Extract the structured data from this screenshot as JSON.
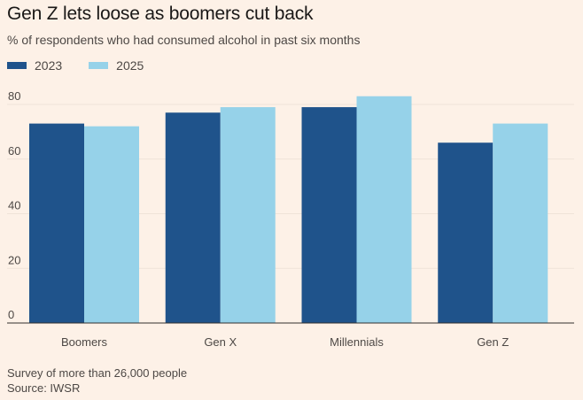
{
  "header": {
    "title": "Gen Z lets loose as boomers cut back",
    "subtitle": "% of respondents who had consumed alcohol in past six months"
  },
  "legend": [
    {
      "label": "2023",
      "color": "#1f538b"
    },
    {
      "label": "2025",
      "color": "#96d2e9"
    }
  ],
  "footer": {
    "note": "Survey of more than 26,000 people",
    "source": "Source: IWSR"
  },
  "chart_data": {
    "type": "bar",
    "title": "Gen Z lets loose as boomers cut back",
    "subtitle": "% of respondents who had consumed alcohol in past six months",
    "categories": [
      "Boomers",
      "Gen X",
      "Millennials",
      "Gen Z"
    ],
    "series": [
      {
        "name": "2023",
        "color": "#1f538b",
        "values": [
          73,
          77,
          79,
          66
        ]
      },
      {
        "name": "2025",
        "color": "#96d2e9",
        "values": [
          72,
          79,
          83,
          73
        ]
      }
    ],
    "ylim": [
      0,
      80
    ],
    "yticks": [
      0,
      20,
      40,
      60,
      80
    ],
    "xlabel": "",
    "ylabel": "",
    "grid": true,
    "legend_position": "top-left"
  }
}
